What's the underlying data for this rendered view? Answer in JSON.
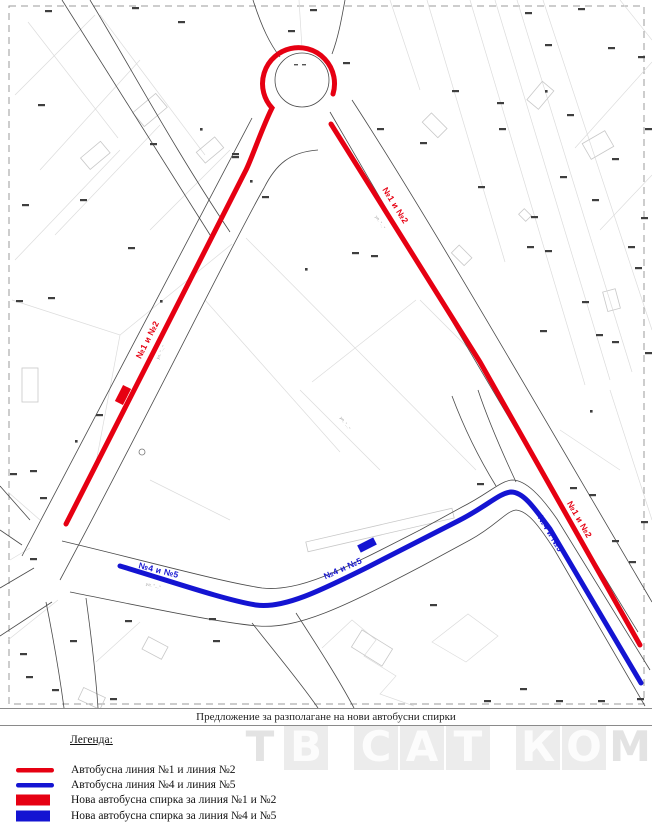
{
  "title": "Предложение за разполагане на нови автобусни спирки",
  "watermark": {
    "text": "ТВ САТ КОМ",
    "letters": [
      "Т",
      "В",
      "С",
      "А",
      "Т",
      "К",
      "О",
      "М"
    ]
  },
  "legend": {
    "heading": "Легенда:",
    "items": [
      {
        "swatch": "line",
        "color": "#e60012",
        "label": "Автобусна линия №1 и линия №2"
      },
      {
        "swatch": "line",
        "color": "#1414d2",
        "label": "Автобусна линия №4 и линия №5"
      },
      {
        "swatch": "stop",
        "color": "#e60012",
        "label": "Нова автобусна спирка за линия №1 и №2"
      },
      {
        "swatch": "stop",
        "color": "#1414d2",
        "label": "Нова автобусна спирка за линия №4 и №5"
      }
    ]
  },
  "map": {
    "colors": {
      "route_red": "#e60012",
      "route_blue": "#1414d2"
    },
    "route_labels": [
      {
        "text": "№1 и №2",
        "color": "#e60012"
      },
      {
        "text": "№1 и №2",
        "color": "#e60012"
      },
      {
        "text": "№1 и №2",
        "color": "#e60012"
      },
      {
        "text": "№4 и №5",
        "color": "#1414d2"
      },
      {
        "text": "№4 и №5",
        "color": "#1414d2"
      },
      {
        "text": "№4 и №5",
        "color": "#1414d2"
      }
    ],
    "street_labels": [
      {
        "text": "ул. \"...\""
      },
      {
        "text": "ул. \"...\""
      },
      {
        "text": "ул. \"...\""
      },
      {
        "text": "ул. \"...\""
      }
    ]
  }
}
